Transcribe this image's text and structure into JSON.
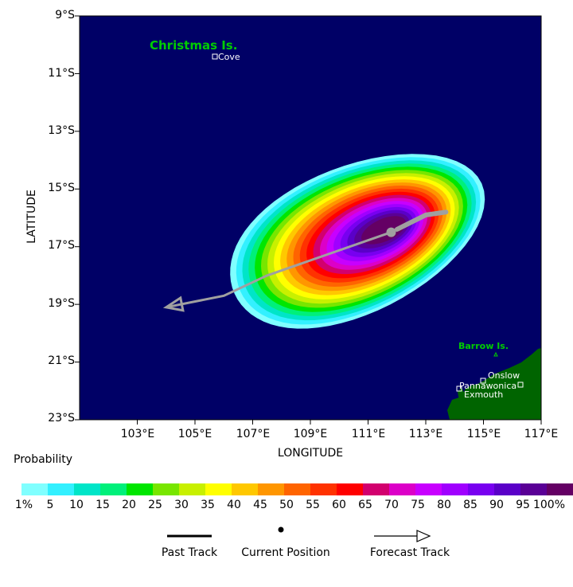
{
  "axes": {
    "xlabel": "LONGITUDE",
    "ylabel": "LATITUDE",
    "x_ticks": [
      "103°E",
      "105°E",
      "107°E",
      "109°E",
      "111°E",
      "113°E",
      "115°E",
      "117°E"
    ],
    "y_ticks": [
      "9°S",
      "11°S",
      "13°S",
      "15°S",
      "17°S",
      "19°S",
      "21°S",
      "23°S"
    ],
    "lon_range": [
      101,
      117
    ],
    "lat_range": [
      -9,
      -23
    ]
  },
  "places": [
    {
      "name": "Christmas Is.",
      "kind": "island",
      "color": "#00cc00"
    },
    {
      "name": "Cove",
      "kind": "town",
      "color": "#ffffff"
    },
    {
      "name": "Barrow Is.",
      "kind": "island",
      "color": "#00cc00"
    },
    {
      "name": "Onslow",
      "kind": "town",
      "color": "#ffffff"
    },
    {
      "name": "Pannawonica",
      "kind": "town",
      "color": "#ffffff"
    },
    {
      "name": "Exmouth",
      "kind": "town",
      "color": "#ffffff"
    }
  ],
  "legend": {
    "title": "Probability",
    "labels": [
      "1%",
      "5",
      "10",
      "15",
      "20",
      "25",
      "30",
      "35",
      "40",
      "45",
      "50",
      "55",
      "60",
      "65",
      "70",
      "75",
      "80",
      "85",
      "90",
      "95",
      "100%"
    ],
    "colors": [
      "#80ffff",
      "#33f0ff",
      "#00e5c8",
      "#00f07a",
      "#00e600",
      "#78e600",
      "#c8f000",
      "#ffff00",
      "#ffc800",
      "#ff9600",
      "#ff6400",
      "#ff3200",
      "#ff0000",
      "#d2006e",
      "#dc00c8",
      "#c800ff",
      "#a000ff",
      "#7800f0",
      "#5a00c8",
      "#5a0096",
      "#640064"
    ]
  },
  "key": {
    "past_track": "Past Track",
    "current_position": "Current Position",
    "forecast_track": "Forecast Track"
  },
  "colors": {
    "ocean": "#000066",
    "land": "#006400",
    "track": "#a0a0a0"
  },
  "track": {
    "past": [
      [
        113.7,
        -15.8
      ],
      [
        113.0,
        -15.9
      ],
      [
        112.5,
        -16.15
      ],
      [
        112.0,
        -16.4
      ]
    ],
    "current": [
      111.8,
      -16.5
    ],
    "forecast": [
      [
        111.8,
        -16.5
      ],
      [
        107.5,
        -18.0
      ],
      [
        106.0,
        -18.7
      ],
      [
        104.0,
        -19.1
      ]
    ]
  }
}
